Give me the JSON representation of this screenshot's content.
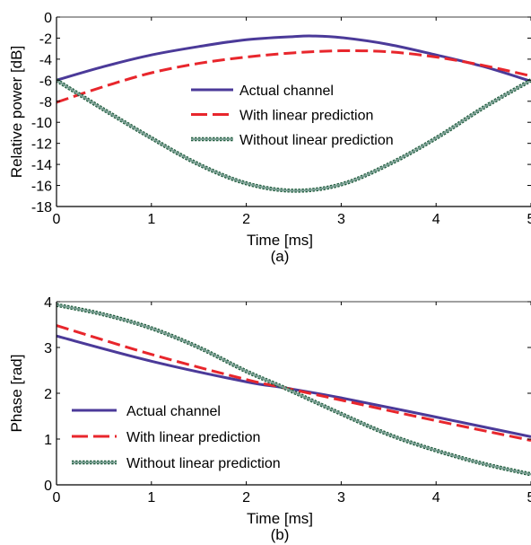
{
  "colors": {
    "actual": "#4b3a99",
    "with_pred": "#e8262c",
    "without_pred_outer": "#1c5a3a",
    "without_pred_inner": "#7a9f93",
    "axis": "#000000",
    "background": "#ffffff"
  },
  "chart_data": [
    {
      "type": "line",
      "panel_label": "(a)",
      "xlabel": "Time [ms]",
      "ylabel": "Relative power [dB]",
      "xlim": [
        0,
        5
      ],
      "ylim": [
        -18,
        0
      ],
      "xticks": [
        0,
        1,
        2,
        3,
        4,
        5
      ],
      "xtick_labels": [
        "0",
        "1",
        "2",
        "3",
        "4",
        "5"
      ],
      "yticks": [
        0,
        -2,
        -4,
        -6,
        -8,
        -10,
        -12,
        -14,
        -16,
        -18
      ],
      "ytick_labels": [
        "0",
        "-2",
        "-4",
        "-6",
        "-8",
        "-10",
        "-12",
        "-14",
        "-16",
        "-18"
      ],
      "grid": false,
      "legend_position": "center-right",
      "series": [
        {
          "name": "Actual channel",
          "style": "solid",
          "x": [
            0,
            0.5,
            1,
            1.5,
            2,
            2.5,
            2.7,
            3,
            3.5,
            4,
            4.5,
            5
          ],
          "y": [
            -6.0,
            -4.7,
            -3.6,
            -2.8,
            -2.15,
            -1.85,
            -1.8,
            -1.95,
            -2.6,
            -3.6,
            -4.7,
            -6.1
          ]
        },
        {
          "name": "With linear prediction",
          "style": "dashed",
          "x": [
            0,
            0.5,
            1,
            1.5,
            2,
            2.5,
            3,
            3.5,
            4,
            4.5,
            5
          ],
          "y": [
            -8.1,
            -6.6,
            -5.3,
            -4.4,
            -3.8,
            -3.4,
            -3.2,
            -3.3,
            -3.8,
            -4.6,
            -5.6
          ]
        },
        {
          "name": "Without linear prediction",
          "style": "dotted",
          "x": [
            0,
            0.5,
            1,
            1.5,
            2,
            2.5,
            3,
            3.5,
            4,
            4.5,
            5
          ],
          "y": [
            -6.0,
            -8.8,
            -11.5,
            -14.0,
            -15.8,
            -16.5,
            -15.9,
            -14.0,
            -11.5,
            -8.6,
            -6.0
          ]
        }
      ]
    },
    {
      "type": "line",
      "panel_label": "(b)",
      "xlabel": "Time [ms]",
      "ylabel": "Phase [rad]",
      "xlim": [
        0,
        5
      ],
      "ylim": [
        0,
        4
      ],
      "xticks": [
        0,
        1,
        2,
        3,
        4,
        5
      ],
      "xtick_labels": [
        "0",
        "1",
        "2",
        "3",
        "4",
        "5"
      ],
      "yticks": [
        0,
        1,
        2,
        3,
        4
      ],
      "ytick_labels": [
        "0",
        "1",
        "2",
        "3",
        "4"
      ],
      "grid": false,
      "legend_position": "bottom-left",
      "series": [
        {
          "name": "Actual channel",
          "style": "solid",
          "x": [
            0,
            1,
            2,
            2.4,
            3,
            4,
            5
          ],
          "y": [
            3.25,
            2.7,
            2.25,
            2.12,
            1.9,
            1.48,
            1.05
          ]
        },
        {
          "name": "With linear prediction",
          "style": "dashed",
          "x": [
            0,
            1,
            2,
            2.4,
            3,
            4,
            5
          ],
          "y": [
            3.48,
            2.85,
            2.3,
            2.12,
            1.85,
            1.4,
            0.97
          ]
        },
        {
          "name": "Without linear prediction",
          "style": "dotted",
          "x": [
            0,
            0.5,
            1,
            1.5,
            2,
            2.4,
            3,
            3.5,
            4,
            4.5,
            5
          ],
          "y": [
            3.93,
            3.72,
            3.42,
            3.0,
            2.48,
            2.12,
            1.55,
            1.1,
            0.75,
            0.46,
            0.23
          ]
        }
      ]
    }
  ]
}
